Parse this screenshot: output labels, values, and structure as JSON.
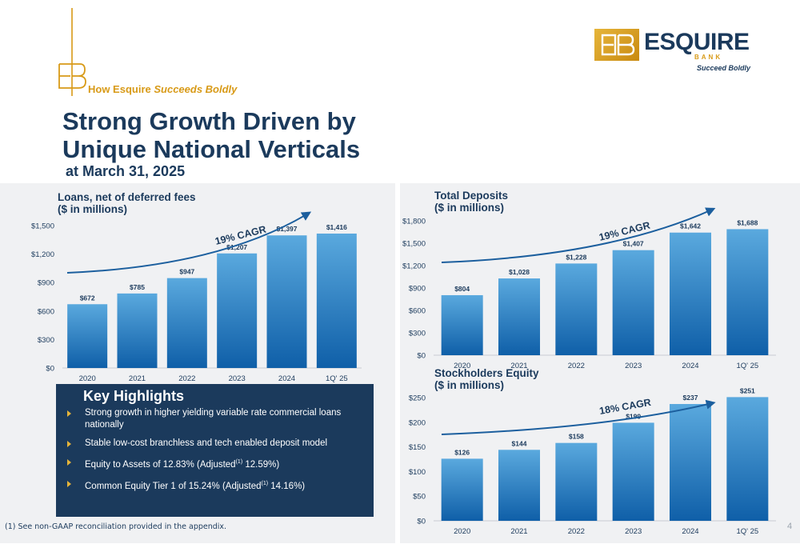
{
  "header": {
    "tagline_prefix": "How Esquire ",
    "tagline_emph": "Succeeds Boldly",
    "title_line1": "Strong Growth Driven by",
    "title_line2": "Unique National Verticals",
    "subtitle": "at March 31, 2025"
  },
  "logo": {
    "name": "ESQUIRE",
    "bank": "BANK",
    "tagline": "Succeed Boldly",
    "icon": "eb-monogram-icon"
  },
  "colors": {
    "navy": "#1b3a5c",
    "gold": "#d89a17",
    "bar_top": "#5aa9de",
    "bar_bottom": "#0f5fa8",
    "arrow": "#1c5f9e"
  },
  "chart_data": [
    {
      "type": "bar",
      "title": [
        "Loans, net of deferred fees",
        "($ in millions)"
      ],
      "categories": [
        "2020",
        "2021",
        "2022",
        "2023",
        "2024",
        "1Q' 25"
      ],
      "values": [
        672,
        785,
        947,
        1207,
        1397,
        1416
      ],
      "data_labels": [
        "$672",
        "$785",
        "$947",
        "$1,207",
        "$1,397",
        "$1,416"
      ],
      "yticks": [
        "$0",
        "$300",
        "$600",
        "$900",
        "$1,200",
        "$1,500"
      ],
      "ylim": [
        0,
        1500
      ],
      "annotation": "19% CAGR"
    },
    {
      "type": "bar",
      "title": [
        "Total Deposits",
        "($ in millions)"
      ],
      "categories": [
        "2020",
        "2021",
        "2022",
        "2023",
        "2024",
        "1Q' 25"
      ],
      "values": [
        804,
        1028,
        1228,
        1407,
        1642,
        1688
      ],
      "data_labels": [
        "$804",
        "$1,028",
        "$1,228",
        "$1,407",
        "$1,642",
        "$1,688"
      ],
      "yticks": [
        "$0",
        "$300",
        "$600",
        "$900",
        "$1,200",
        "$1,500",
        "$1,800"
      ],
      "ylim": [
        0,
        1800
      ],
      "annotation": "19% CAGR"
    },
    {
      "type": "bar",
      "title": [
        "Stockholders Equity",
        "($ in millions)"
      ],
      "categories": [
        "2020",
        "2021",
        "2022",
        "2023",
        "2024",
        "1Q' 25"
      ],
      "values": [
        126,
        144,
        158,
        199,
        237,
        251
      ],
      "data_labels": [
        "$126",
        "$144",
        "$158",
        "$199",
        "$237",
        "$251"
      ],
      "yticks": [
        "$0",
        "$50",
        "$100",
        "$150",
        "$200",
        "$250"
      ],
      "ylim": [
        0,
        250
      ],
      "annotation": "18% CAGR"
    }
  ],
  "highlights": {
    "title": "Key Highlights",
    "items": [
      {
        "text": "Strong growth in higher yielding variable rate commercial loans nationally"
      },
      {
        "text": "Stable low-cost branchless and tech enabled deposit model"
      },
      {
        "pre": "Equity to Assets of 12.83% (Adjusted",
        "sup": "(1)",
        "post": " 12.59%)"
      },
      {
        "pre": "Common Equity Tier 1 of 15.24% (Adjusted",
        "sup": "(1)",
        "post": " 14.16%)"
      }
    ]
  },
  "footnote": "(1) See non-GAAP reconciliation provided in the appendix.",
  "page_number": "4"
}
